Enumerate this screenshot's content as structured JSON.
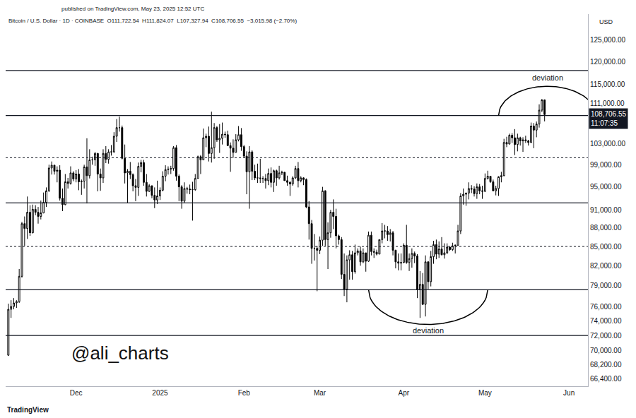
{
  "chart_data": {
    "type": "candlestick",
    "title": "Bitcoin / U.S. Dollar · 1D · COINBASE  O111,722.54  H111,824.07  L107,327.94  C108,706.55  −3,015.98 (−2.70%)",
    "subtitle": "published on TradingView.com, May 23, 2025 12:52 UTC",
    "y_label": "USD",
    "handle": "@ali_charts",
    "watermark": "TradingView",
    "log": "y",
    "grid": false,
    "xlim": [
      "2024-11-05",
      "2025-06-08"
    ],
    "xticks": [
      {
        "value": "2024-12-01",
        "label": "Dec"
      },
      {
        "value": "2025-01-01",
        "label": "2025"
      },
      {
        "value": "2025-02-01",
        "label": "Feb"
      },
      {
        "value": "2025-03-01",
        "label": "Mar"
      },
      {
        "value": "2025-04-01",
        "label": "Apr"
      },
      {
        "value": "2025-05-01",
        "label": "May"
      },
      {
        "value": "2025-06-01",
        "label": "Jun"
      }
    ],
    "ylim": [
      65500,
      131100
    ],
    "yticks": [
      {
        "value": 125000,
        "label": "125,000.00"
      },
      {
        "value": 120000,
        "label": "120,000.00"
      },
      {
        "value": 115000,
        "label": "115,000.00"
      },
      {
        "value": 111000,
        "label": "111,000.00"
      },
      {
        "value": 103000,
        "label": "103,000.00"
      },
      {
        "value": 99000,
        "label": "99,000.00"
      },
      {
        "value": 95000,
        "label": "95,000.00"
      },
      {
        "value": 91000,
        "label": "91,000.00"
      },
      {
        "value": 88000,
        "label": "88,000.00"
      },
      {
        "value": 85000,
        "label": "85,000.00"
      },
      {
        "value": 82000,
        "label": "82,000.00"
      },
      {
        "value": 79000,
        "label": "79,000.00"
      },
      {
        "value": 76000,
        "label": "76,000.00"
      },
      {
        "value": 74000,
        "label": "74,000.00"
      },
      {
        "value": 72000,
        "label": "72,000.00"
      },
      {
        "value": 70000,
        "label": "70,000.00"
      },
      {
        "value": 68200,
        "label": "68,200.00"
      },
      {
        "value": 66400,
        "label": "66,400.00"
      }
    ],
    "last_price": {
      "value": 108706.55,
      "label": "108,706.55",
      "countdown": "11:07:35"
    },
    "levels": [
      {
        "value": 118000,
        "line_style": "solid"
      },
      {
        "value": 108500,
        "line_style": "solid"
      },
      {
        "value": 100300,
        "line_style": "dotted"
      },
      {
        "value": 92200,
        "line_style": "solid"
      },
      {
        "value": 85000,
        "line_style": "dotted"
      },
      {
        "value": 78400,
        "line_style": "solid"
      },
      {
        "value": 72000,
        "line_style": "solid"
      }
    ],
    "annotations": [
      {
        "text": "deviation",
        "x": "2025-05-24",
        "y": 116500,
        "arc": {
          "start": "2025-05-06",
          "end": "2025-06-11",
          "base": 108500,
          "peak": 114600
        }
      },
      {
        "text": "deviation",
        "x": "2025-04-10",
        "y": 72700,
        "arc": {
          "start": "2025-03-19",
          "end": "2025-05-02",
          "base": 78400,
          "peak": 73500
        }
      }
    ],
    "x": [
      "2024-11-06",
      "2024-11-07",
      "2024-11-08",
      "2024-11-09",
      "2024-11-10",
      "2024-11-11",
      "2024-11-12",
      "2024-11-13",
      "2024-11-14",
      "2024-11-15",
      "2024-11-16",
      "2024-11-17",
      "2024-11-18",
      "2024-11-19",
      "2024-11-20",
      "2024-11-21",
      "2024-11-22",
      "2024-11-23",
      "2024-11-24",
      "2024-11-25",
      "2024-11-26",
      "2024-11-27",
      "2024-11-28",
      "2024-11-29",
      "2024-11-30",
      "2024-12-01",
      "2024-12-02",
      "2024-12-03",
      "2024-12-04",
      "2024-12-05",
      "2024-12-06",
      "2024-12-07",
      "2024-12-08",
      "2024-12-09",
      "2024-12-10",
      "2024-12-11",
      "2024-12-12",
      "2024-12-13",
      "2024-12-14",
      "2024-12-15",
      "2024-12-16",
      "2024-12-17",
      "2024-12-18",
      "2024-12-19",
      "2024-12-20",
      "2024-12-21",
      "2024-12-22",
      "2024-12-23",
      "2024-12-24",
      "2024-12-25",
      "2024-12-26",
      "2024-12-27",
      "2024-12-28",
      "2024-12-29",
      "2024-12-30",
      "2024-12-31",
      "2025-01-01",
      "2025-01-02",
      "2025-01-03",
      "2025-01-04",
      "2025-01-05",
      "2025-01-06",
      "2025-01-07",
      "2025-01-08",
      "2025-01-09",
      "2025-01-10",
      "2025-01-11",
      "2025-01-12",
      "2025-01-13",
      "2025-01-14",
      "2025-01-15",
      "2025-01-16",
      "2025-01-17",
      "2025-01-18",
      "2025-01-19",
      "2025-01-20",
      "2025-01-21",
      "2025-01-22",
      "2025-01-23",
      "2025-01-24",
      "2025-01-25",
      "2025-01-26",
      "2025-01-27",
      "2025-01-28",
      "2025-01-29",
      "2025-01-30",
      "2025-01-31",
      "2025-02-01",
      "2025-02-02",
      "2025-02-03",
      "2025-02-04",
      "2025-02-05",
      "2025-02-06",
      "2025-02-07",
      "2025-02-08",
      "2025-02-09",
      "2025-02-10",
      "2025-02-11",
      "2025-02-12",
      "2025-02-13",
      "2025-02-14",
      "2025-02-15",
      "2025-02-16",
      "2025-02-17",
      "2025-02-18",
      "2025-02-19",
      "2025-02-20",
      "2025-02-21",
      "2025-02-22",
      "2025-02-23",
      "2025-02-24",
      "2025-02-25",
      "2025-02-26",
      "2025-02-27",
      "2025-02-28",
      "2025-03-01",
      "2025-03-02",
      "2025-03-03",
      "2025-03-04",
      "2025-03-05",
      "2025-03-06",
      "2025-03-07",
      "2025-03-08",
      "2025-03-09",
      "2025-03-10",
      "2025-03-11",
      "2025-03-12",
      "2025-03-13",
      "2025-03-14",
      "2025-03-15",
      "2025-03-16",
      "2025-03-17",
      "2025-03-18",
      "2025-03-19",
      "2025-03-20",
      "2025-03-21",
      "2025-03-22",
      "2025-03-23",
      "2025-03-24",
      "2025-03-25",
      "2025-03-26",
      "2025-03-27",
      "2025-03-28",
      "2025-03-29",
      "2025-03-30",
      "2025-03-31",
      "2025-04-01",
      "2025-04-02",
      "2025-04-03",
      "2025-04-04",
      "2025-04-05",
      "2025-04-06",
      "2025-04-07",
      "2025-04-08",
      "2025-04-09",
      "2025-04-10",
      "2025-04-11",
      "2025-04-12",
      "2025-04-13",
      "2025-04-14",
      "2025-04-15",
      "2025-04-16",
      "2025-04-17",
      "2025-04-18",
      "2025-04-19",
      "2025-04-20",
      "2025-04-21",
      "2025-04-22",
      "2025-04-23",
      "2025-04-24",
      "2025-04-25",
      "2025-04-26",
      "2025-04-27",
      "2025-04-28",
      "2025-04-29",
      "2025-04-30",
      "2025-05-01",
      "2025-05-02",
      "2025-05-03",
      "2025-05-04",
      "2025-05-05",
      "2025-05-06",
      "2025-05-07",
      "2025-05-08",
      "2025-05-09",
      "2025-05-10",
      "2025-05-11",
      "2025-05-12",
      "2025-05-13",
      "2025-05-14",
      "2025-05-15",
      "2025-05-16",
      "2025-05-17",
      "2025-05-18",
      "2025-05-19",
      "2025-05-20",
      "2025-05-21",
      "2025-05-22",
      "2025-05-23"
    ],
    "open": [
      69400,
      75600,
      76000,
      76500,
      76700,
      80400,
      88700,
      87900,
      90600,
      87200,
      91100,
      90600,
      89900,
      90500,
      92300,
      94300,
      98400,
      98900,
      97800,
      98000,
      93000,
      91900,
      95900,
      95600,
      97500,
      96400,
      97300,
      95900,
      96000,
      98600,
      97000,
      99900,
      99900,
      101100,
      97300,
      96600,
      101100,
      100000,
      101400,
      101400,
      104400,
      106100,
      106100,
      100200,
      97500,
      97800,
      97200,
      95200,
      94900,
      98700,
      99400,
      95800,
      94200,
      95200,
      93500,
      92700,
      93400,
      94400,
      96900,
      98100,
      98200,
      98300,
      102200,
      96900,
      95000,
      92500,
      94700,
      94600,
      94500,
      94500,
      96500,
      100500,
      99900,
      104100,
      104400,
      101100,
      102200,
      106100,
      103700,
      104000,
      104800,
      104700,
      102600,
      102100,
      101300,
      103700,
      104700,
      102400,
      100600,
      97700,
      101400,
      97800,
      96600,
      96600,
      96500,
      96500,
      96100,
      97400,
      95800,
      97900,
      96600,
      97500,
      97600,
      96100,
      95800,
      95500,
      96600,
      98300,
      96100,
      96600,
      96300,
      91500,
      88700,
      84700,
      84700,
      84400,
      86000,
      94300,
      86100,
      87200,
      90600,
      89900,
      86700,
      86100,
      80700,
      78500,
      82900,
      83700,
      81100,
      84000,
      84300,
      82600,
      84000,
      82700,
      86800,
      84200,
      84100,
      83800,
      86100,
      87500,
      87500,
      86900,
      87200,
      84400,
      82600,
      82400,
      82500,
      85200,
      82500,
      83100,
      83900,
      83500,
      78400,
      79200,
      76300,
      82600,
      79600,
      83400,
      85300,
      83800,
      84600,
      83700,
      84000,
      84900,
      84500,
      85100,
      85200,
      87500,
      93400,
      93700,
      93900,
      94700,
      94600,
      93800,
      95000,
      94300,
      94200,
      96500,
      96900,
      95900,
      94300,
      94700,
      96800,
      97000,
      103200,
      102900,
      104600,
      104100,
      102800,
      104100,
      103500,
      103700,
      103500,
      103200,
      106400,
      105600,
      106800,
      109600,
      111722.54
    ],
    "high": [
      76400,
      76900,
      77200,
      76900,
      81500,
      89000,
      89900,
      93300,
      91800,
      91900,
      91800,
      91500,
      92600,
      94000,
      94900,
      99000,
      99600,
      99000,
      98700,
      98900,
      94700,
      97300,
      96600,
      98700,
      97800,
      98000,
      98200,
      96300,
      99000,
      104000,
      101900,
      100500,
      101400,
      101200,
      98300,
      101900,
      102500,
      101900,
      102700,
      105200,
      107800,
      108300,
      106500,
      102800,
      98200,
      99500,
      97400,
      96400,
      99400,
      99900,
      99900,
      97300,
      95500,
      95200,
      94900,
      96100,
      94900,
      97800,
      98900,
      98700,
      98800,
      102500,
      102700,
      97200,
      95300,
      95800,
      95000,
      95400,
      95900,
      97300,
      100700,
      100800,
      105900,
      104900,
      106300,
      109300,
      107000,
      106400,
      106800,
      107100,
      105300,
      105500,
      103200,
      103800,
      104800,
      106400,
      106000,
      102700,
      101500,
      102500,
      101700,
      99000,
      99200,
      100100,
      96900,
      97300,
      98300,
      98500,
      98100,
      98100,
      98800,
      97900,
      97700,
      97000,
      96000,
      96900,
      98800,
      99500,
      96900,
      96700,
      96500,
      92500,
      89300,
      87000,
      85100,
      86600,
      95000,
      94400,
      88900,
      91000,
      92800,
      91200,
      86900,
      86500,
      83900,
      83600,
      84400,
      84300,
      85300,
      84700,
      85000,
      84700,
      84000,
      87400,
      87400,
      84700,
      84500,
      86100,
      88800,
      88500,
      88300,
      87800,
      87500,
      84500,
      83900,
      83900,
      85500,
      88500,
      83900,
      84700,
      84200,
      83800,
      81200,
      80900,
      83600,
      82700,
      84300,
      85900,
      86100,
      85800,
      86500,
      85500,
      85500,
      85100,
      85600,
      85300,
      88500,
      93900,
      94700,
      94000,
      95800,
      95300,
      95100,
      95600,
      95500,
      95200,
      97400,
      97900,
      96900,
      96300,
      95200,
      96900,
      97700,
      103900,
      104300,
      104900,
      105000,
      105800,
      104900,
      104300,
      104200,
      104500,
      103700,
      107100,
      107000,
      107300,
      110800,
      111900,
      111824.07
    ],
    "low": [
      69300,
      74400,
      75600,
      75800,
      76500,
      80200,
      85100,
      86200,
      86700,
      87100,
      90100,
      88700,
      89400,
      90400,
      91500,
      94100,
      97200,
      97200,
      95800,
      92600,
      90800,
      91800,
      94700,
      95400,
      96000,
      95800,
      94400,
      93600,
      94700,
      92100,
      96500,
      99000,
      98800,
      94200,
      94300,
      95700,
      99300,
      99200,
      100700,
      101200,
      103300,
      105300,
      100000,
      95600,
      92200,
      96400,
      94200,
      92500,
      93400,
      97600,
      95200,
      93300,
      94100,
      93000,
      91300,
      92000,
      92700,
      94200,
      96000,
      97200,
      97300,
      97900,
      96100,
      92500,
      91200,
      92200,
      93800,
      93700,
      89200,
      94300,
      96500,
      97300,
      99900,
      102300,
      99600,
      99400,
      100100,
      103300,
      101200,
      102800,
      104100,
      102500,
      97700,
      100300,
      101300,
      103400,
      101600,
      100300,
      93700,
      91200,
      96200,
      96200,
      95700,
      95700,
      95700,
      94700,
      95300,
      94900,
      94100,
      95200,
      96300,
      97100,
      96100,
      95200,
      93400,
      95200,
      96400,
      94900,
      95800,
      95300,
      91300,
      86100,
      82300,
      82800,
      78200,
      83800,
      85100,
      85100,
      81500,
      86400,
      87800,
      84700,
      85300,
      80000,
      77500,
      76600,
      79900,
      79900,
      80800,
      83600,
      82000,
      82400,
      81100,
      82600,
      83600,
      83200,
      83600,
      83800,
      85500,
      86300,
      85900,
      85800,
      83600,
      81600,
      81300,
      81300,
      82400,
      82300,
      81200,
      81700,
      82400,
      77200,
      74400,
      76200,
      74600,
      78500,
      78900,
      82300,
      83000,
      83200,
      83600,
      83100,
      83800,
      84300,
      84300,
      83900,
      85100,
      87000,
      91900,
      91700,
      92800,
      93900,
      93300,
      92900,
      93700,
      92900,
      94100,
      96300,
      95700,
      94200,
      93500,
      93400,
      95800,
      96900,
      102300,
      102800,
      103100,
      100800,
      101500,
      102600,
      101400,
      103100,
      102600,
      103100,
      102100,
      104200,
      106100,
      109200,
      107327.94
    ],
    "close": [
      75600,
      76000,
      76500,
      76700,
      80400,
      88700,
      87900,
      90600,
      87200,
      91100,
      90600,
      89900,
      90500,
      92300,
      94300,
      98400,
      98900,
      97800,
      98000,
      93000,
      91900,
      95900,
      95600,
      97500,
      96400,
      97300,
      95900,
      96000,
      98600,
      97000,
      99900,
      99900,
      101100,
      97300,
      96600,
      101100,
      100000,
      101400,
      101400,
      104400,
      106100,
      106100,
      100200,
      97500,
      97800,
      97200,
      95200,
      94900,
      98700,
      99400,
      95800,
      94200,
      95200,
      93500,
      92700,
      93400,
      94400,
      96900,
      98100,
      98200,
      98300,
      102200,
      96900,
      95000,
      92500,
      94700,
      94600,
      94500,
      94500,
      96500,
      100500,
      99900,
      104100,
      104400,
      101100,
      102200,
      106100,
      103700,
      104000,
      104800,
      104700,
      102600,
      102100,
      101300,
      103700,
      104700,
      102400,
      100600,
      97700,
      101400,
      97800,
      96600,
      96600,
      96500,
      96500,
      96100,
      97400,
      95800,
      97900,
      96600,
      97500,
      97600,
      96100,
      95800,
      95500,
      96600,
      98300,
      96100,
      96600,
      96300,
      91500,
      88700,
      84700,
      84700,
      84400,
      86000,
      94300,
      86100,
      87200,
      90600,
      89900,
      86700,
      86100,
      80700,
      78500,
      82900,
      83700,
      81100,
      84000,
      84300,
      82600,
      84000,
      82700,
      86800,
      84200,
      84100,
      83800,
      86100,
      87500,
      87500,
      86900,
      87200,
      84400,
      82600,
      82400,
      82500,
      85200,
      82500,
      83100,
      83900,
      83500,
      78400,
      79200,
      76300,
      82600,
      79600,
      83400,
      85300,
      83800,
      84600,
      83700,
      84000,
      84900,
      84500,
      85100,
      85200,
      87500,
      93400,
      93700,
      93900,
      94700,
      94600,
      93800,
      95000,
      94300,
      94200,
      96500,
      96900,
      95900,
      94300,
      94700,
      96800,
      97000,
      103200,
      102900,
      104600,
      104100,
      102800,
      104100,
      103500,
      103700,
      103500,
      103200,
      106400,
      105600,
      106800,
      109600,
      111700,
      108706.55
    ]
  }
}
